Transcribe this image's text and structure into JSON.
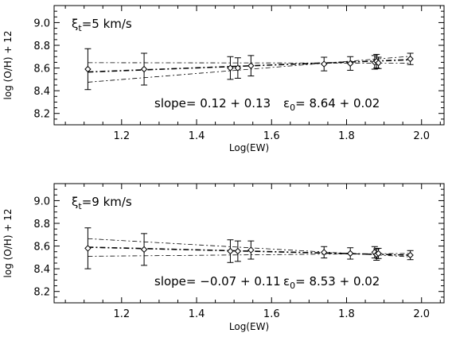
{
  "chart_data": [
    {
      "type": "scatter",
      "annotation_title": {
        "symbol": "ξ",
        "subscript": "t",
        "rest": "=5 km/s"
      },
      "annotation_slope": "slope= 0.12 + 0.13",
      "annotation_eps": {
        "symbol": "ε",
        "subscript": "0",
        "rest": "= 8.64 + 0.02"
      },
      "xlabel": "Log(EW)",
      "ylabel": "log (O/H) + 12",
      "xlim": [
        1.02,
        2.06
      ],
      "ylim": [
        8.1,
        9.15
      ],
      "xticks": [
        1.2,
        1.4,
        1.6,
        1.8,
        2.0
      ],
      "xtick_labels": [
        "1.2",
        "1.4",
        "1.6",
        "1.8",
        "2.0"
      ],
      "yticks": [
        8.2,
        8.4,
        8.6,
        8.8,
        9.0
      ],
      "ytick_labels": [
        "8.2",
        "8.4",
        "8.6",
        "8.8",
        "9.0"
      ],
      "points": [
        {
          "x": 1.11,
          "y": 8.59,
          "err": 0.18
        },
        {
          "x": 1.26,
          "y": 8.59,
          "err": 0.14
        },
        {
          "x": 1.49,
          "y": 8.6,
          "err": 0.1
        },
        {
          "x": 1.51,
          "y": 8.6,
          "err": 0.09
        },
        {
          "x": 1.545,
          "y": 8.62,
          "err": 0.09
        },
        {
          "x": 1.74,
          "y": 8.635,
          "err": 0.06
        },
        {
          "x": 1.81,
          "y": 8.64,
          "err": 0.06
        },
        {
          "x": 1.875,
          "y": 8.65,
          "err": 0.06
        },
        {
          "x": 1.88,
          "y": 8.66,
          "err": 0.06
        },
        {
          "x": 1.885,
          "y": 8.645,
          "err": 0.05
        },
        {
          "x": 1.97,
          "y": 8.68,
          "err": 0.05
        }
      ],
      "fit_lines": [
        {
          "style": "dash-dot-bold",
          "x": [
            1.11,
            1.97
          ],
          "y": [
            8.565,
            8.673
          ]
        },
        {
          "style": "dash-dot-light",
          "x": [
            1.11,
            1.97
          ],
          "y": [
            8.647,
            8.643
          ]
        },
        {
          "style": "dash-dot-light",
          "x": [
            1.11,
            1.97
          ],
          "y": [
            8.475,
            8.703
          ]
        }
      ]
    },
    {
      "type": "scatter",
      "annotation_title": {
        "symbol": "ξ",
        "subscript": "t",
        "rest": "=9 km/s"
      },
      "annotation_slope": "slope= −0.07 + 0.11",
      "annotation_eps": {
        "symbol": "ε",
        "subscript": "0",
        "rest": "= 8.53 + 0.02"
      },
      "xlabel": "Log(EW)",
      "ylabel": "log (O/H) + 12",
      "xlim": [
        1.02,
        2.06
      ],
      "ylim": [
        8.1,
        9.15
      ],
      "xticks": [
        1.2,
        1.4,
        1.6,
        1.8,
        2.0
      ],
      "xtick_labels": [
        "1.2",
        "1.4",
        "1.6",
        "1.8",
        "2.0"
      ],
      "yticks": [
        8.2,
        8.4,
        8.6,
        8.8,
        9.0
      ],
      "ytick_labels": [
        "8.2",
        "8.4",
        "8.6",
        "8.8",
        "9.0"
      ],
      "points": [
        {
          "x": 1.11,
          "y": 8.58,
          "err": 0.18
        },
        {
          "x": 1.26,
          "y": 8.57,
          "err": 0.14
        },
        {
          "x": 1.49,
          "y": 8.555,
          "err": 0.1
        },
        {
          "x": 1.51,
          "y": 8.555,
          "err": 0.09
        },
        {
          "x": 1.545,
          "y": 8.565,
          "err": 0.08
        },
        {
          "x": 1.74,
          "y": 8.545,
          "err": 0.05
        },
        {
          "x": 1.81,
          "y": 8.535,
          "err": 0.05
        },
        {
          "x": 1.875,
          "y": 8.545,
          "err": 0.05
        },
        {
          "x": 1.88,
          "y": 8.525,
          "err": 0.05
        },
        {
          "x": 1.885,
          "y": 8.535,
          "err": 0.045
        },
        {
          "x": 1.97,
          "y": 8.52,
          "err": 0.04
        }
      ],
      "fit_lines": [
        {
          "style": "dash-dot-bold",
          "x": [
            1.11,
            1.97
          ],
          "y": [
            8.59,
            8.52
          ]
        },
        {
          "style": "dash-dot-light",
          "x": [
            1.11,
            1.97
          ],
          "y": [
            8.665,
            8.505
          ]
        },
        {
          "style": "dash-dot-light",
          "x": [
            1.11,
            1.97
          ],
          "y": [
            8.51,
            8.535
          ]
        }
      ]
    }
  ]
}
